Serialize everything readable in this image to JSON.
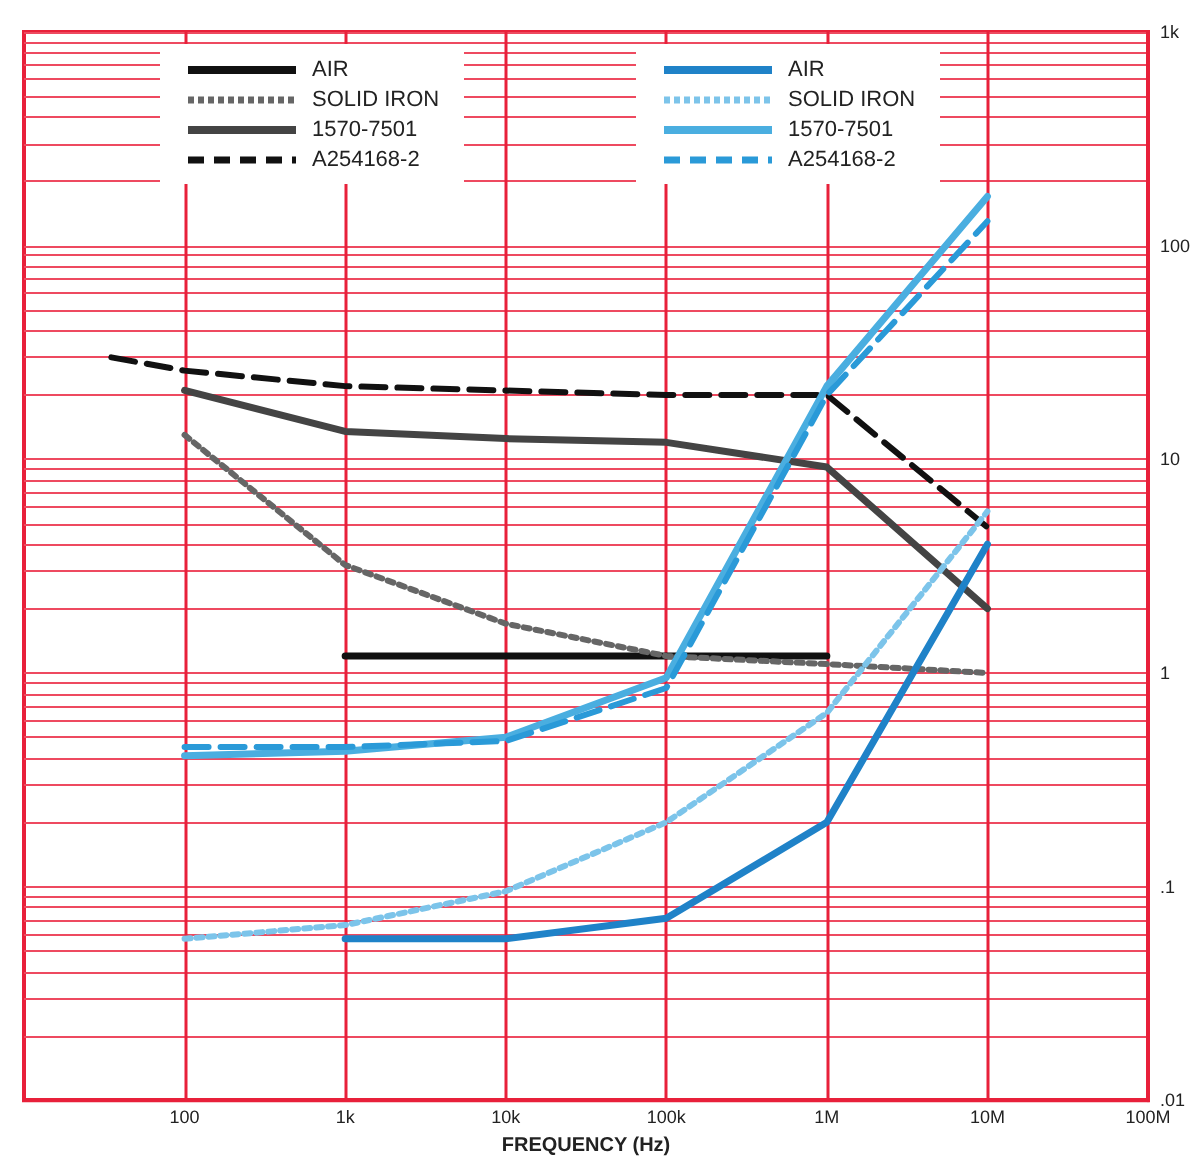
{
  "chart_data": {
    "type": "line",
    "xlabel": "FREQUENCY (Hz)",
    "log": "xy",
    "grid": true,
    "legend": "top",
    "marker": "none",
    "xlim": [
      10,
      100000000
    ],
    "ylim": [
      0.01,
      1000
    ],
    "xticks": [
      {
        "value": 100,
        "label": "100"
      },
      {
        "value": 1000,
        "label": "1k"
      },
      {
        "value": 10000,
        "label": "10k"
      },
      {
        "value": 100000,
        "label": "100k"
      },
      {
        "value": 1000000,
        "label": "1M"
      },
      {
        "value": 10000000,
        "label": "10M"
      },
      {
        "value": 100000000,
        "label": "100M"
      }
    ],
    "yticks": [
      {
        "value": 0.01,
        "label": ".01"
      },
      {
        "value": 0.02,
        "label": null
      },
      {
        "value": 0.03,
        "label": null
      },
      {
        "value": 0.04,
        "label": null
      },
      {
        "value": 0.05,
        "label": null
      },
      {
        "value": 0.06,
        "label": null
      },
      {
        "value": 0.07,
        "label": null
      },
      {
        "value": 0.08,
        "label": null
      },
      {
        "value": 0.09,
        "label": null
      },
      {
        "value": 0.1,
        "label": ".1"
      },
      {
        "value": 0.2,
        "label": null
      },
      {
        "value": 0.3,
        "label": null
      },
      {
        "value": 0.4,
        "label": null
      },
      {
        "value": 0.5,
        "label": null
      },
      {
        "value": 0.6,
        "label": null
      },
      {
        "value": 0.7,
        "label": null
      },
      {
        "value": 0.8,
        "label": null
      },
      {
        "value": 0.9,
        "label": null
      },
      {
        "value": 1,
        "label": "1"
      },
      {
        "value": 2,
        "label": null
      },
      {
        "value": 3,
        "label": null
      },
      {
        "value": 4,
        "label": null
      },
      {
        "value": 5,
        "label": null
      },
      {
        "value": 6,
        "label": null
      },
      {
        "value": 7,
        "label": null
      },
      {
        "value": 8,
        "label": null
      },
      {
        "value": 9,
        "label": null
      },
      {
        "value": 10,
        "label": "10"
      },
      {
        "value": 20,
        "label": null
      },
      {
        "value": 30,
        "label": null
      },
      {
        "value": 40,
        "label": null
      },
      {
        "value": 50,
        "label": null
      },
      {
        "value": 60,
        "label": null
      },
      {
        "value": 70,
        "label": null
      },
      {
        "value": 80,
        "label": null
      },
      {
        "value": 90,
        "label": null
      },
      {
        "value": 100,
        "label": "100"
      },
      {
        "value": 200,
        "label": null
      },
      {
        "value": 300,
        "label": null
      },
      {
        "value": 400,
        "label": null
      },
      {
        "value": 500,
        "label": null
      },
      {
        "value": 600,
        "label": null
      },
      {
        "value": 700,
        "label": null
      },
      {
        "value": 800,
        "label": null
      },
      {
        "value": 900,
        "label": null
      },
      {
        "value": 1000,
        "label": "1k"
      }
    ],
    "series": [
      {
        "name": "AIR",
        "color": "#111111",
        "line_style": "solid",
        "x": [
          1000,
          1000000
        ],
        "values": [
          1.2,
          1.2
        ]
      },
      {
        "name": "SOLID IRON",
        "color": "#666666",
        "line_style": "dotted",
        "x": [
          100,
          1000,
          10000,
          100000,
          1000000,
          10000000
        ],
        "values": [
          13,
          3.2,
          1.7,
          1.2,
          1.1,
          1.0
        ]
      },
      {
        "name": "1570-7501",
        "color": "#444444",
        "line_style": "solid",
        "x": [
          100,
          1000,
          10000,
          100000,
          1000000,
          10000000
        ],
        "values": [
          21,
          13.5,
          12.5,
          12,
          9.2,
          2.0
        ]
      },
      {
        "name": "A254168-2",
        "color": "#111111",
        "line_style": "dashed",
        "x": [
          35,
          100,
          1000,
          100000,
          1000000,
          10000000
        ],
        "values": [
          30,
          26,
          22,
          20,
          20,
          4.8
        ]
      },
      {
        "name": "AIR",
        "color": "#1f82c8",
        "line_style": "solid",
        "x": [
          1000,
          10000,
          100000,
          1000000,
          10000000
        ],
        "values": [
          0.057,
          0.057,
          0.071,
          0.2,
          4
        ]
      },
      {
        "name": "SOLID IRON",
        "color": "#7cc4ea",
        "line_style": "dotted",
        "x": [
          100,
          1000,
          10000,
          100000,
          1000000,
          10000000
        ],
        "values": [
          0.057,
          0.066,
          0.095,
          0.2,
          0.65,
          5.7
        ]
      },
      {
        "name": "1570-7501",
        "color": "#4aaee0",
        "line_style": "solid",
        "x": [
          100,
          1000,
          10000,
          100000,
          1000000,
          10000000
        ],
        "values": [
          0.41,
          0.43,
          0.5,
          0.95,
          22,
          170
        ]
      },
      {
        "name": "A254168-2",
        "color": "#2a9ad8",
        "line_style": "dashed",
        "x": [
          100,
          1000,
          10000,
          100000,
          1000000,
          10000000
        ],
        "values": [
          0.45,
          0.45,
          0.48,
          0.85,
          20,
          130
        ]
      }
    ]
  }
}
